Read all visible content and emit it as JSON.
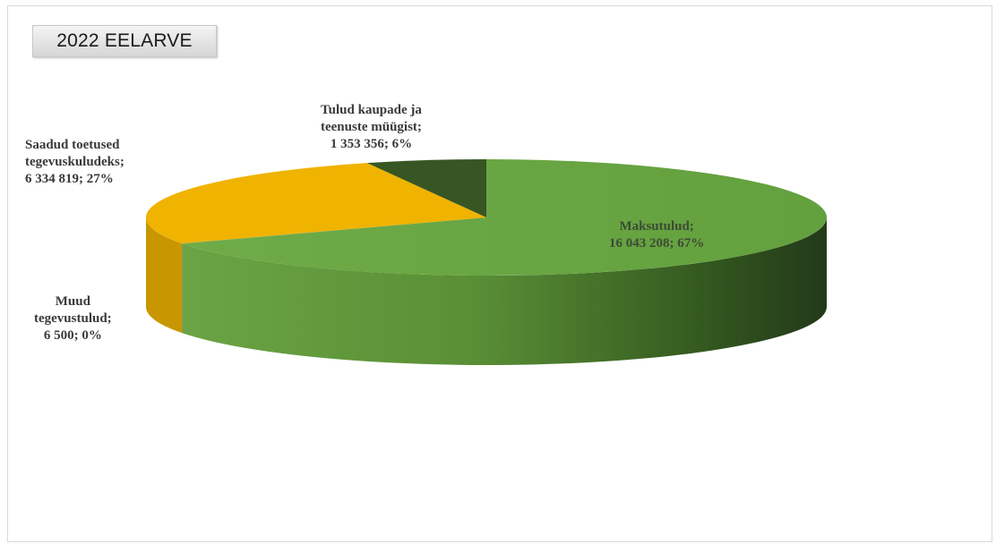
{
  "chart_data": {
    "type": "pie",
    "title": "2022 EELARVE",
    "slices": [
      {
        "label_lines": [
          "Maksutulud;",
          "16 043 208; 67%"
        ],
        "name": "Maksutulud",
        "value": 16043208,
        "percent": 67,
        "color": "#6aa444"
      },
      {
        "label_lines": [
          "Muud",
          "tegevustulud;",
          "6 500; 0%"
        ],
        "name": "Muud tegevustulud",
        "value": 6500,
        "percent": 0,
        "color": "#4472c4"
      },
      {
        "label_lines": [
          "Saadud toetused",
          "tegevuskuludeks;",
          "6 334 819; 27%"
        ],
        "name": "Saadud toetused tegevuskuludeks",
        "value": 6334819,
        "percent": 27,
        "color": "#f0b400"
      },
      {
        "label_lines": [
          "Tulud kaupade ja",
          "teenuste müügist;",
          "1 353 356; 6%"
        ],
        "name": "Tulud kaupade ja teenuste müügist",
        "value": 1353356,
        "percent": 6,
        "color": "#375623"
      }
    ],
    "legend": "none",
    "style": "3d-pie"
  }
}
